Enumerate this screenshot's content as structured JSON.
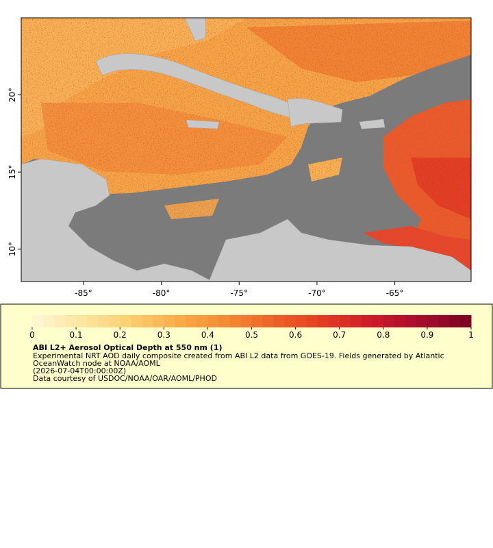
{
  "map": {
    "lon_range": [
      -89,
      -60.1
    ],
    "lat_range": [
      7.9,
      25
    ],
    "lon_ticks": [
      {
        "value": -85,
        "label": "-85°"
      },
      {
        "value": -80,
        "label": "-80°"
      },
      {
        "value": -75,
        "label": "-75°"
      },
      {
        "value": -70,
        "label": "-70°"
      },
      {
        "value": -65,
        "label": "-65°"
      }
    ],
    "lat_ticks": [
      {
        "value": 10,
        "label": "10°"
      },
      {
        "value": 15,
        "label": "15°"
      },
      {
        "value": 20,
        "label": "20°"
      }
    ]
  },
  "colorbar": {
    "range": [
      0,
      1
    ],
    "ticks": [
      0,
      0.1,
      0.2,
      0.3,
      0.4,
      0.5,
      0.6,
      0.7,
      0.8,
      0.9,
      1
    ],
    "colors": [
      "#fff7d6",
      "#fde6a0",
      "#fdcf70",
      "#f9ab48",
      "#f48a33",
      "#ee6027",
      "#e33a22",
      "#cc1a2a",
      "#a60c2c",
      "#7a0222"
    ]
  },
  "legend": {
    "title": "ABI L2+ Aerosol Optical Depth at 550 nm (1)",
    "lines": [
      "Experimental NRT AOD daily composite created from ABI L2 data from GOES-19. Fields generated by Atlantic",
      "OceanWatch node at NOAA/AOML",
      "(2026-07-04T00:00:00Z)",
      "Data courtesy of USDOC/NOAA/OAR/AOML/PHOD"
    ]
  }
}
